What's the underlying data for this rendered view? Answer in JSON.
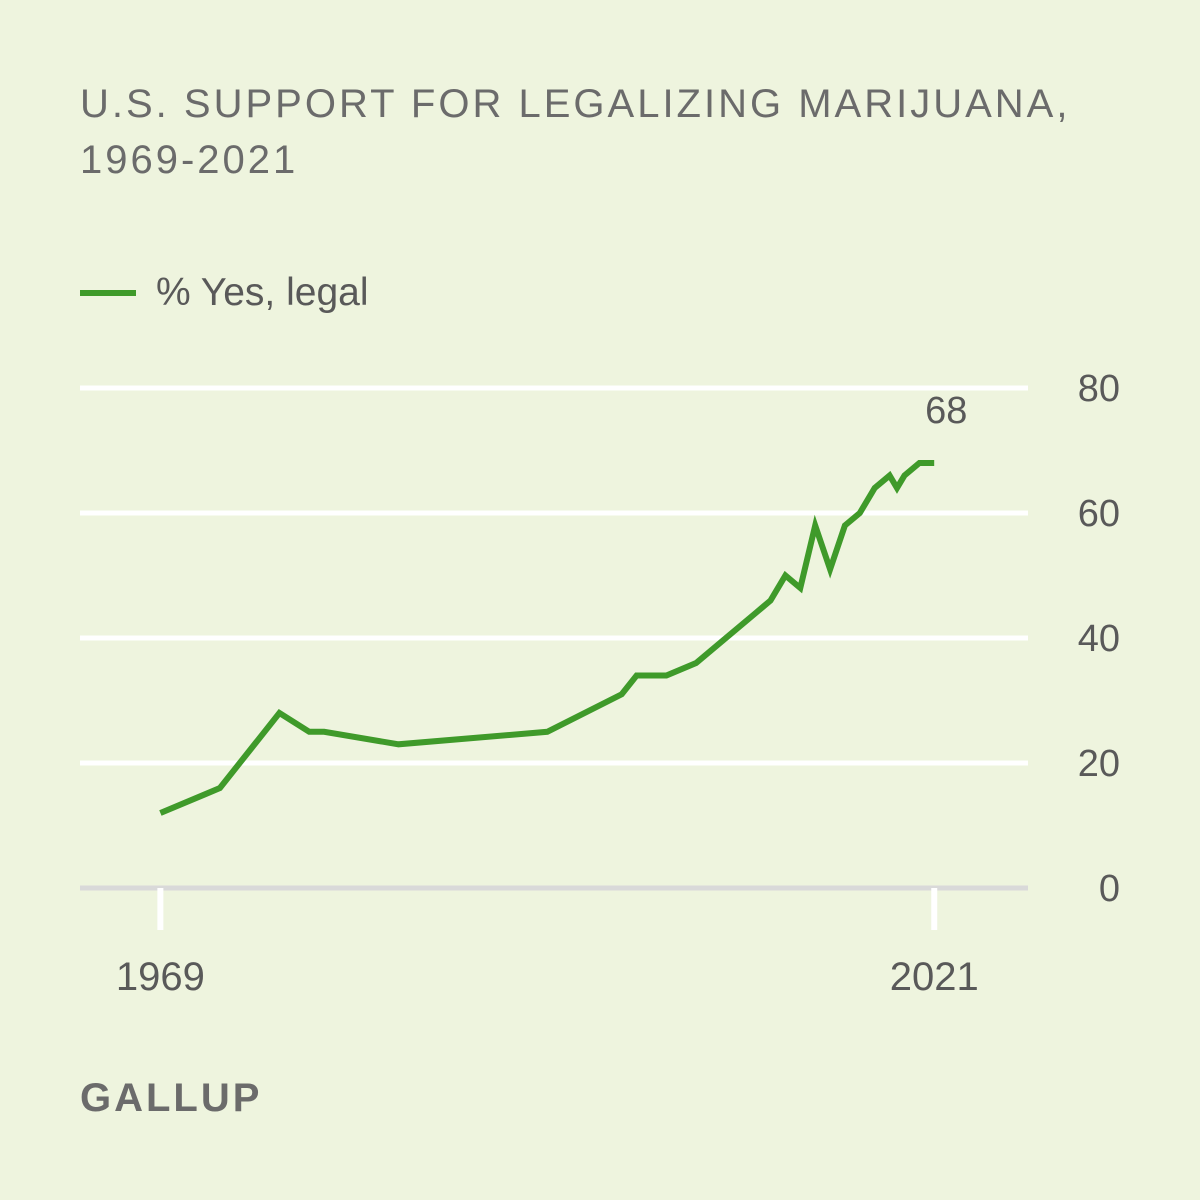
{
  "title": "U.S. SUPPORT FOR LEGALIZING MARIJUANA, 1969-2021",
  "brand": "GALLUP",
  "chart_data": {
    "type": "line",
    "title": "U.S. SUPPORT FOR LEGALIZING MARIJUANA, 1969-2021",
    "xlabel": "",
    "ylabel": "",
    "x_tick_labels": [
      "1969",
      "2021"
    ],
    "y_ticks": [
      0,
      20,
      40,
      60,
      80
    ],
    "ylim": [
      0,
      80
    ],
    "xlim": [
      1963.6,
      2027.3
    ],
    "grid": true,
    "legend_position": "top-left",
    "end_label": "68",
    "series": [
      {
        "name": "% Yes, legal",
        "color": "#3f9a2a",
        "points": [
          [
            1969,
            12
          ],
          [
            1972,
            15
          ],
          [
            1973,
            16
          ],
          [
            1977,
            28
          ],
          [
            1979,
            25
          ],
          [
            1980,
            25
          ],
          [
            1985,
            23
          ],
          [
            1995,
            25
          ],
          [
            2000,
            31
          ],
          [
            2001,
            34
          ],
          [
            2003,
            34
          ],
          [
            2005,
            36
          ],
          [
            2009,
            44
          ],
          [
            2010,
            46
          ],
          [
            2011,
            50
          ],
          [
            2012,
            48
          ],
          [
            2013,
            58
          ],
          [
            2014,
            51
          ],
          [
            2015,
            58
          ],
          [
            2016,
            60
          ],
          [
            2017,
            64
          ],
          [
            2018,
            66
          ],
          [
            2018.5,
            64
          ],
          [
            2019,
            66
          ],
          [
            2020,
            68
          ],
          [
            2021,
            68
          ]
        ]
      }
    ]
  }
}
